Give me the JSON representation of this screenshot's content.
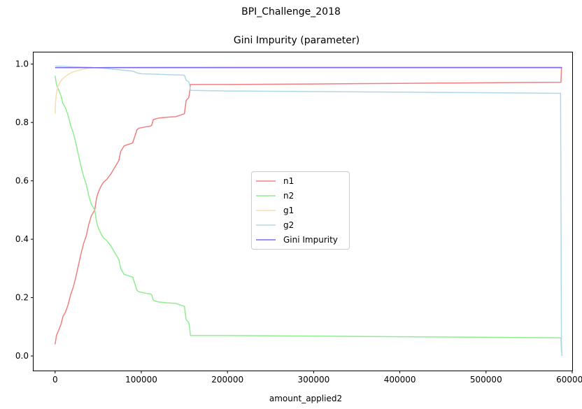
{
  "chart_data": {
    "type": "line",
    "suptitle": "BPI_Challenge_2018",
    "title": "Gini Impurity (parameter)",
    "xlabel": "amount_applied2",
    "ylabel": "",
    "xlim": [
      -25000,
      600000
    ],
    "ylim": [
      -0.05,
      1.04
    ],
    "xticks": [
      0,
      100000,
      200000,
      300000,
      400000,
      500000,
      600000
    ],
    "xtick_labels": [
      "0",
      "100000",
      "200000",
      "300000",
      "400000",
      "500000",
      "600000"
    ],
    "yticks": [
      0.0,
      0.2,
      0.4,
      0.6,
      0.8,
      1.0
    ],
    "ytick_labels": [
      "0.0",
      "0.2",
      "0.4",
      "0.6",
      "0.8",
      "1.0"
    ],
    "grid": false,
    "legend_position": "center",
    "series": [
      {
        "name": "n1",
        "color": "#f08080",
        "x": [
          0,
          1500,
          3000,
          5000,
          7000,
          9000,
          12000,
          15000,
          18000,
          21000,
          24000,
          27000,
          30000,
          33000,
          36000,
          39000,
          42000,
          44000,
          46000,
          48000,
          50000,
          53000,
          56000,
          60000,
          65000,
          70000,
          74000,
          76000,
          80000,
          85000,
          90000,
          95000,
          97000,
          100000,
          105000,
          110000,
          112000,
          114000,
          120000,
          130000,
          140000,
          150000,
          152000,
          155000,
          156000,
          157000,
          200000,
          300000,
          400000,
          500000,
          587000,
          587500,
          588000
        ],
        "y": [
          0.04,
          0.07,
          0.08,
          0.095,
          0.11,
          0.135,
          0.15,
          0.175,
          0.21,
          0.235,
          0.27,
          0.31,
          0.35,
          0.385,
          0.41,
          0.45,
          0.48,
          0.49,
          0.5,
          0.54,
          0.56,
          0.58,
          0.595,
          0.605,
          0.625,
          0.65,
          0.67,
          0.7,
          0.72,
          0.725,
          0.73,
          0.775,
          0.78,
          0.782,
          0.785,
          0.787,
          0.79,
          0.81,
          0.815,
          0.818,
          0.82,
          0.83,
          0.875,
          0.885,
          0.9,
          0.93,
          0.93,
          0.932,
          0.934,
          0.936,
          0.938,
          0.985,
          0.99
        ]
      },
      {
        "name": "n2",
        "color": "#90ee90",
        "x": [
          0,
          1500,
          3000,
          5000,
          7000,
          9000,
          12000,
          15000,
          18000,
          21000,
          24000,
          27000,
          30000,
          33000,
          36000,
          39000,
          42000,
          44000,
          46000,
          48000,
          50000,
          53000,
          56000,
          60000,
          65000,
          70000,
          74000,
          76000,
          80000,
          85000,
          90000,
          95000,
          97000,
          100000,
          105000,
          110000,
          112000,
          114000,
          120000,
          130000,
          140000,
          150000,
          152000,
          155000,
          156000,
          157000,
          200000,
          300000,
          400000,
          500000,
          587000,
          587500,
          588000
        ],
        "y": [
          0.96,
          0.93,
          0.92,
          0.905,
          0.89,
          0.865,
          0.85,
          0.825,
          0.79,
          0.765,
          0.73,
          0.69,
          0.65,
          0.615,
          0.59,
          0.55,
          0.52,
          0.51,
          0.5,
          0.46,
          0.44,
          0.42,
          0.405,
          0.395,
          0.375,
          0.35,
          0.33,
          0.3,
          0.28,
          0.275,
          0.27,
          0.225,
          0.22,
          0.218,
          0.215,
          0.213,
          0.21,
          0.19,
          0.185,
          0.182,
          0.18,
          0.17,
          0.125,
          0.115,
          0.1,
          0.07,
          0.07,
          0.068,
          0.066,
          0.064,
          0.062,
          0.015,
          0.01
        ]
      },
      {
        "name": "g1",
        "color": "#f5deb3",
        "x": [
          0,
          500,
          1500,
          3000,
          5000,
          8000,
          12000,
          16000,
          20000,
          25000,
          30000,
          35000,
          40000,
          50000,
          60000,
          100000,
          200000,
          300000,
          400000,
          500000,
          588000
        ],
        "y": [
          0.83,
          0.87,
          0.9,
          0.92,
          0.935,
          0.948,
          0.958,
          0.966,
          0.972,
          0.977,
          0.981,
          0.984,
          0.986,
          0.988,
          0.989,
          0.99,
          0.991,
          0.991,
          0.991,
          0.991,
          0.991
        ]
      },
      {
        "name": "g2",
        "color": "#add8e6",
        "x": [
          0,
          10000,
          20000,
          30000,
          40000,
          50000,
          60000,
          70000,
          80000,
          90000,
          95000,
          100000,
          120000,
          140000,
          150000,
          152000,
          155000,
          156000,
          157000,
          200000,
          300000,
          400000,
          500000,
          586500,
          587000,
          587500,
          588000
        ],
        "y": [
          0.993,
          0.992,
          0.991,
          0.99,
          0.989,
          0.987,
          0.985,
          0.982,
          0.979,
          0.976,
          0.97,
          0.967,
          0.965,
          0.963,
          0.962,
          0.945,
          0.94,
          0.93,
          0.91,
          0.908,
          0.906,
          0.904,
          0.902,
          0.9,
          0.5,
          0.05,
          0.0
        ]
      },
      {
        "name": "Gini Impurity",
        "color": "#7b68ee",
        "x": [
          0,
          50000,
          100000,
          200000,
          300000,
          400000,
          500000,
          588000
        ],
        "y": [
          0.988,
          0.988,
          0.988,
          0.988,
          0.988,
          0.988,
          0.988,
          0.988
        ]
      }
    ]
  }
}
